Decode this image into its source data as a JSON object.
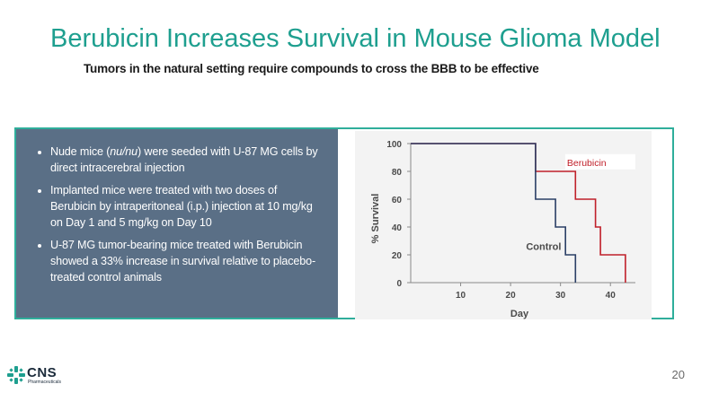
{
  "slide": {
    "title": "Berubicin Increases Survival in Mouse Glioma Model",
    "subtitle": "Tumors in the natural setting require compounds to cross the BBB to be effective",
    "page_number": "20"
  },
  "logo": {
    "name": "CNS",
    "tagline": "Pharmaceuticals",
    "icon": "cross-star-icon",
    "color": "#1e9f8f"
  },
  "bullets": [
    {
      "pre": "Nude mice (",
      "italic": "nu/nu",
      "post": ") were seeded with U-87 MG cells by direct intracerebral injection"
    },
    {
      "pre": "Implanted mice were treated with two doses of Berubicin by intraperitoneal (i.p.) injection at 10 mg/kg on Day 1 and 5 mg/kg on Day 10",
      "italic": "",
      "post": ""
    },
    {
      "pre": "U-87 MG tumor-bearing mice treated with Berubicin showed a 33% increase in survival relative to placebo-treated control animals",
      "italic": "",
      "post": ""
    }
  ],
  "colors": {
    "title": "#1e9f8f",
    "panel_border": "#2fae9b",
    "bullet_bg": "#5a6f86",
    "berubicin_line": "#c0202a",
    "control_line": "#2b3f66"
  },
  "chart_data": {
    "type": "line",
    "step": true,
    "xlabel": "Day",
    "ylabel": "% Survival",
    "xlim": [
      0,
      45
    ],
    "ylim": [
      0,
      100
    ],
    "xticks": [
      10,
      20,
      30,
      40
    ],
    "yticks": [
      0,
      20,
      40,
      60,
      80,
      100
    ],
    "grid": false,
    "series": [
      {
        "name": "Berubicin",
        "label_style": "inline-boxed",
        "color": "#c0202a",
        "points": [
          [
            0,
            100
          ],
          [
            25,
            100
          ],
          [
            25,
            80
          ],
          [
            33,
            80
          ],
          [
            33,
            60
          ],
          [
            37,
            60
          ],
          [
            37,
            40
          ],
          [
            38,
            40
          ],
          [
            38,
            20
          ],
          [
            43,
            20
          ],
          [
            43,
            0
          ]
        ]
      },
      {
        "name": "Control",
        "label_style": "inline",
        "color": "#2b3f66",
        "points": [
          [
            0,
            100
          ],
          [
            25,
            100
          ],
          [
            25,
            60
          ],
          [
            29,
            60
          ],
          [
            29,
            40
          ],
          [
            31,
            40
          ],
          [
            31,
            20
          ],
          [
            33,
            20
          ],
          [
            33,
            0
          ]
        ]
      }
    ]
  }
}
